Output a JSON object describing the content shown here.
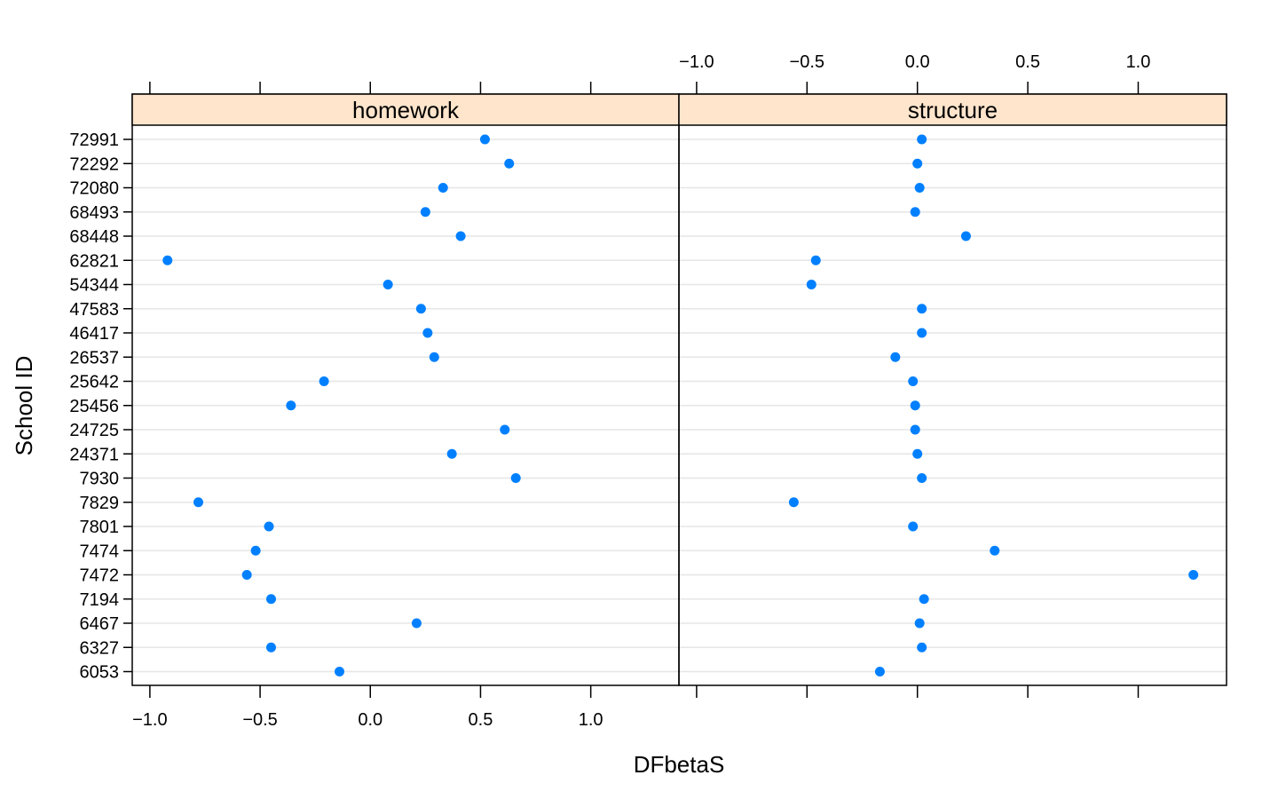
{
  "chart_data": {
    "type": "scatter",
    "xlabel": "DFbetaS",
    "ylabel": "School ID",
    "xlim": [
      -1.08,
      1.4
    ],
    "xticks": [
      "−1.0",
      "−0.5",
      "0.0",
      "0.5",
      "1.0"
    ],
    "xtick_values": [
      -1.0,
      -0.5,
      0.0,
      0.5,
      1.0
    ],
    "grid": "horizontal",
    "categories": [
      "72991",
      "72292",
      "72080",
      "68493",
      "68448",
      "62821",
      "54344",
      "47583",
      "46417",
      "26537",
      "25642",
      "25456",
      "24725",
      "24371",
      "7930",
      "7829",
      "7801",
      "7474",
      "7472",
      "7194",
      "6467",
      "6327",
      "6053"
    ],
    "panels": [
      {
        "name": "homework",
        "values": [
          0.52,
          0.63,
          0.33,
          0.25,
          0.41,
          -0.92,
          0.08,
          0.23,
          0.26,
          0.29,
          -0.21,
          -0.36,
          0.61,
          0.37,
          0.66,
          -0.78,
          -0.46,
          -0.52,
          -0.56,
          -0.45,
          0.21,
          -0.45,
          -0.14
        ]
      },
      {
        "name": "structure",
        "values": [
          0.02,
          0.0,
          0.01,
          -0.01,
          0.22,
          -0.46,
          -0.48,
          0.02,
          0.02,
          -0.1,
          -0.02,
          -0.01,
          -0.01,
          0.0,
          0.02,
          -0.56,
          -0.02,
          0.35,
          1.25,
          0.03,
          0.01,
          0.02,
          -0.17
        ]
      }
    ],
    "colors": {
      "point": "#0080ff",
      "strip": "#ffe5cc",
      "grid": "#e6e6e6",
      "frame": "#000000"
    }
  }
}
